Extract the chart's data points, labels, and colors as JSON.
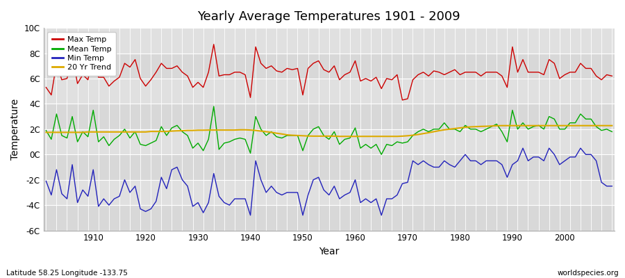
{
  "title": "Yearly Average Temperatures 1901 - 2009",
  "xlabel": "Year",
  "ylabel": "Temperature",
  "subtitle_left": "Latitude 58.25 Longitude -133.75",
  "subtitle_right": "worldspecies.org",
  "years": [
    1901,
    1902,
    1903,
    1904,
    1905,
    1906,
    1907,
    1908,
    1909,
    1910,
    1911,
    1912,
    1913,
    1914,
    1915,
    1916,
    1917,
    1918,
    1919,
    1920,
    1921,
    1922,
    1923,
    1924,
    1925,
    1926,
    1927,
    1928,
    1929,
    1930,
    1931,
    1932,
    1933,
    1934,
    1935,
    1936,
    1937,
    1938,
    1939,
    1940,
    1941,
    1942,
    1943,
    1944,
    1945,
    1946,
    1947,
    1948,
    1949,
    1950,
    1951,
    1952,
    1953,
    1954,
    1955,
    1956,
    1957,
    1958,
    1959,
    1960,
    1961,
    1962,
    1963,
    1964,
    1965,
    1966,
    1967,
    1968,
    1969,
    1970,
    1971,
    1972,
    1973,
    1974,
    1975,
    1976,
    1977,
    1978,
    1979,
    1980,
    1981,
    1982,
    1983,
    1984,
    1985,
    1986,
    1987,
    1988,
    1989,
    1990,
    1991,
    1992,
    1993,
    1994,
    1995,
    1996,
    1997,
    1998,
    1999,
    2000,
    2001,
    2002,
    2003,
    2004,
    2005,
    2006,
    2007,
    2008,
    2009
  ],
  "max_temp": [
    5.3,
    4.7,
    7.2,
    5.9,
    6.0,
    7.8,
    5.6,
    6.3,
    5.9,
    8.0,
    6.1,
    6.1,
    5.4,
    5.8,
    6.1,
    7.2,
    6.9,
    7.5,
    6.0,
    5.4,
    5.9,
    6.5,
    7.2,
    6.8,
    6.8,
    7.0,
    6.5,
    6.2,
    5.3,
    5.7,
    5.3,
    6.5,
    8.7,
    6.2,
    6.3,
    6.3,
    6.5,
    6.5,
    6.3,
    4.5,
    8.5,
    7.2,
    6.8,
    7.0,
    6.6,
    6.5,
    6.8,
    6.7,
    6.8,
    4.7,
    6.8,
    7.2,
    7.4,
    6.7,
    6.5,
    7.0,
    5.9,
    6.3,
    6.5,
    7.4,
    5.8,
    6.0,
    5.8,
    6.1,
    5.2,
    6.0,
    5.9,
    6.3,
    4.3,
    4.4,
    5.9,
    6.3,
    6.5,
    6.2,
    6.6,
    6.5,
    6.3,
    6.5,
    6.7,
    6.3,
    6.5,
    6.5,
    6.5,
    6.2,
    6.5,
    6.5,
    6.5,
    6.2,
    5.3,
    8.5,
    6.5,
    7.5,
    6.5,
    6.5,
    6.5,
    6.3,
    7.5,
    7.2,
    6.0,
    6.3,
    6.5,
    6.5,
    7.2,
    6.8,
    6.8,
    6.2,
    5.9,
    6.3,
    6.2
  ],
  "mean_temp": [
    1.9,
    1.2,
    3.2,
    1.5,
    1.3,
    3.0,
    1.0,
    1.8,
    1.4,
    3.5,
    1.0,
    1.4,
    0.7,
    1.2,
    1.5,
    2.0,
    1.3,
    1.8,
    0.8,
    0.7,
    0.9,
    1.1,
    2.2,
    1.5,
    2.1,
    2.3,
    1.8,
    1.5,
    0.5,
    0.9,
    0.3,
    1.2,
    3.8,
    0.4,
    0.9,
    1.0,
    1.2,
    1.3,
    1.2,
    0.1,
    3.0,
    2.0,
    1.5,
    1.8,
    1.4,
    1.3,
    1.5,
    1.5,
    1.5,
    0.3,
    1.5,
    2.0,
    2.2,
    1.5,
    1.2,
    1.8,
    0.8,
    1.2,
    1.3,
    2.1,
    0.5,
    0.8,
    0.5,
    0.8,
    0.0,
    0.8,
    0.7,
    1.0,
    0.9,
    1.0,
    1.5,
    1.8,
    2.0,
    1.8,
    2.0,
    2.0,
    2.5,
    2.0,
    2.0,
    1.8,
    2.3,
    2.0,
    2.0,
    1.8,
    2.0,
    2.2,
    2.4,
    1.8,
    1.0,
    3.5,
    2.0,
    2.5,
    2.0,
    2.2,
    2.3,
    2.0,
    3.0,
    2.8,
    2.0,
    2.0,
    2.5,
    2.5,
    3.2,
    2.8,
    2.8,
    2.2,
    1.9,
    2.0,
    1.8
  ],
  "min_temp": [
    -2.1,
    -3.2,
    -1.2,
    -3.1,
    -3.5,
    -0.8,
    -3.8,
    -2.8,
    -3.3,
    -1.2,
    -4.1,
    -3.5,
    -4.0,
    -3.5,
    -3.3,
    -2.0,
    -3.0,
    -2.5,
    -4.3,
    -4.5,
    -4.3,
    -3.7,
    -1.8,
    -2.7,
    -1.2,
    -1.0,
    -2.0,
    -2.5,
    -4.1,
    -3.8,
    -4.6,
    -3.8,
    -1.5,
    -3.3,
    -3.8,
    -4.0,
    -3.5,
    -3.5,
    -3.5,
    -4.8,
    -0.5,
    -2.0,
    -3.0,
    -2.5,
    -3.0,
    -3.2,
    -3.0,
    -3.0,
    -3.0,
    -4.8,
    -3.2,
    -2.0,
    -1.8,
    -2.8,
    -3.2,
    -2.5,
    -3.5,
    -3.2,
    -3.0,
    -2.0,
    -3.8,
    -3.5,
    -3.8,
    -3.5,
    -4.8,
    -3.5,
    -3.5,
    -3.2,
    -2.3,
    -2.2,
    -0.5,
    -0.8,
    -0.5,
    -0.8,
    -1.0,
    -1.0,
    -0.5,
    -0.8,
    -1.0,
    -0.5,
    0.0,
    -0.5,
    -0.5,
    -0.8,
    -0.5,
    -0.5,
    -0.5,
    -0.8,
    -1.8,
    -0.8,
    -0.5,
    0.5,
    -0.5,
    -0.2,
    -0.2,
    -0.5,
    0.5,
    0.0,
    -0.8,
    -0.5,
    -0.2,
    -0.2,
    0.5,
    0.0,
    0.0,
    -0.5,
    -2.2,
    -2.5,
    -2.5
  ],
  "trend_20yr": [
    1.75,
    1.75,
    1.75,
    1.75,
    1.75,
    1.75,
    1.75,
    1.75,
    1.78,
    1.78,
    1.78,
    1.78,
    1.78,
    1.78,
    1.78,
    1.78,
    1.78,
    1.78,
    1.78,
    1.78,
    1.82,
    1.82,
    1.82,
    1.82,
    1.85,
    1.87,
    1.88,
    1.9,
    1.9,
    1.92,
    1.92,
    1.93,
    1.93,
    1.93,
    1.93,
    1.93,
    1.93,
    1.95,
    1.95,
    1.93,
    1.9,
    1.85,
    1.8,
    1.75,
    1.68,
    1.62,
    1.55,
    1.52,
    1.5,
    1.48,
    1.46,
    1.45,
    1.45,
    1.45,
    1.45,
    1.45,
    1.43,
    1.43,
    1.43,
    1.43,
    1.43,
    1.43,
    1.43,
    1.43,
    1.43,
    1.43,
    1.43,
    1.43,
    1.45,
    1.48,
    1.52,
    1.58,
    1.65,
    1.72,
    1.8,
    1.88,
    1.95,
    2.0,
    2.05,
    2.1,
    2.15,
    2.18,
    2.2,
    2.22,
    2.23,
    2.25,
    2.27,
    2.28,
    2.28,
    2.28,
    2.28,
    2.28,
    2.28,
    2.28,
    2.28,
    2.28,
    2.28,
    2.28,
    2.28,
    2.28,
    2.28,
    2.28,
    2.28,
    2.28,
    2.28,
    2.28,
    2.28,
    2.28,
    2.28
  ],
  "max_color": "#cc0000",
  "mean_color": "#00aa00",
  "min_color": "#2222bb",
  "trend_color": "#ddaa00",
  "bg_color": "#ffffff",
  "plot_bg_color": "#e8e8e8",
  "grid_color": "#ffffff",
  "band_color_1": "#d8d8d8",
  "band_color_2": "#e0e0e0",
  "ylim": [
    -6,
    10
  ],
  "yticks": [
    -6,
    -4,
    -2,
    0,
    2,
    4,
    6,
    8,
    10
  ],
  "ytick_labels": [
    "-6C",
    "-4C",
    "-2C",
    "0C",
    "2C",
    "4C",
    "6C",
    "8C",
    "10C"
  ],
  "xlim_min": 1901,
  "xlim_max": 2009,
  "xticks": [
    1910,
    1920,
    1930,
    1940,
    1950,
    1960,
    1970,
    1980,
    1990,
    2000
  ],
  "legend_labels": [
    "Max Temp",
    "Mean Temp",
    "Min Temp",
    "20 Yr Trend"
  ],
  "legend_colors": [
    "#cc0000",
    "#00aa00",
    "#2222bb",
    "#ddaa00"
  ],
  "linewidth": 1.0,
  "trend_linewidth": 1.5
}
